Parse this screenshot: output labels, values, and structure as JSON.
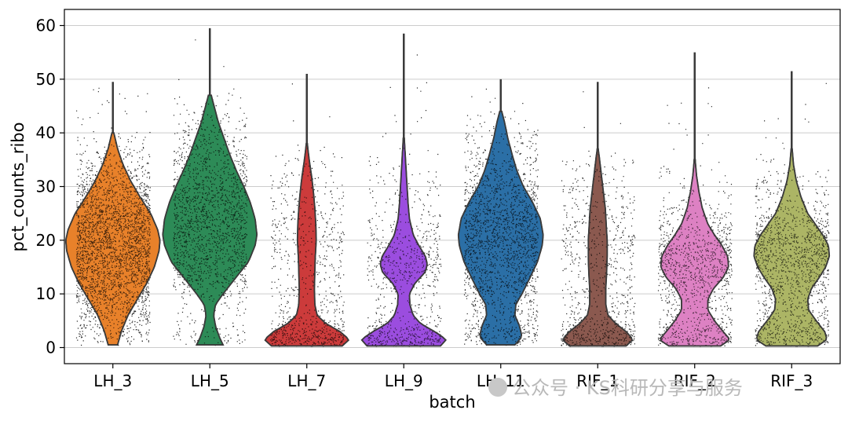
{
  "chart_data": {
    "type": "violin",
    "title": "",
    "xlabel": "batch",
    "ylabel": "pct_counts_ribo",
    "ylim": [
      -3,
      63
    ],
    "yticks": [
      0,
      10,
      20,
      30,
      40,
      50,
      60
    ],
    "grid": "y",
    "categories": [
      "LH_3",
      "LH_5",
      "LH_7",
      "LH_9",
      "LH_11",
      "RIF_1",
      "RIF_2",
      "RIF_3"
    ],
    "colors": [
      "#e8822a",
      "#2e8b57",
      "#cc3b3b",
      "#9b4de0",
      "#2b6fa6",
      "#8b5a50",
      "#dd82c4",
      "#adb566"
    ],
    "violins": [
      {
        "name": "LH_3",
        "min": 0.5,
        "max": 49.5,
        "profile": [
          [
            0.5,
            0.1
          ],
          [
            3,
            0.18
          ],
          [
            6,
            0.32
          ],
          [
            9,
            0.52
          ],
          [
            12,
            0.72
          ],
          [
            15,
            0.88
          ],
          [
            18,
            0.98
          ],
          [
            20,
            1.0
          ],
          [
            22,
            0.95
          ],
          [
            25,
            0.8
          ],
          [
            28,
            0.58
          ],
          [
            31,
            0.38
          ],
          [
            34,
            0.22
          ],
          [
            37,
            0.1
          ],
          [
            40,
            0.02
          ],
          [
            49.5,
            0.0
          ]
        ]
      },
      {
        "name": "LH_5",
        "min": 0.5,
        "max": 59.5,
        "profile": [
          [
            0.5,
            0.28
          ],
          [
            2,
            0.2
          ],
          [
            4,
            0.12
          ],
          [
            6,
            0.08
          ],
          [
            8,
            0.12
          ],
          [
            10,
            0.28
          ],
          [
            13,
            0.55
          ],
          [
            16,
            0.82
          ],
          [
            19,
            0.96
          ],
          [
            21,
            1.0
          ],
          [
            24,
            0.96
          ],
          [
            27,
            0.86
          ],
          [
            30,
            0.72
          ],
          [
            33,
            0.56
          ],
          [
            36,
            0.42
          ],
          [
            39,
            0.3
          ],
          [
            42,
            0.18
          ],
          [
            45,
            0.09
          ],
          [
            47,
            0.03
          ],
          [
            50,
            0.0
          ],
          [
            59.5,
            0.0
          ]
        ]
      },
      {
        "name": "LH_7",
        "min": 0.3,
        "max": 51,
        "profile": [
          [
            0.3,
            0.75
          ],
          [
            1.5,
            0.9
          ],
          [
            3,
            0.7
          ],
          [
            4.5,
            0.4
          ],
          [
            6,
            0.22
          ],
          [
            8,
            0.17
          ],
          [
            11,
            0.16
          ],
          [
            14,
            0.17
          ],
          [
            17,
            0.18
          ],
          [
            20,
            0.2
          ],
          [
            23,
            0.19
          ],
          [
            26,
            0.17
          ],
          [
            29,
            0.14
          ],
          [
            32,
            0.1
          ],
          [
            35,
            0.05
          ],
          [
            38,
            0.01
          ],
          [
            51,
            0.0
          ]
        ]
      },
      {
        "name": "LH_9",
        "min": 0.3,
        "max": 58.5,
        "profile": [
          [
            0.3,
            0.78
          ],
          [
            1.5,
            0.9
          ],
          [
            3,
            0.65
          ],
          [
            4.5,
            0.35
          ],
          [
            6,
            0.2
          ],
          [
            8,
            0.13
          ],
          [
            10,
            0.12
          ],
          [
            12,
            0.24
          ],
          [
            14,
            0.45
          ],
          [
            15.5,
            0.5
          ],
          [
            17,
            0.46
          ],
          [
            19,
            0.32
          ],
          [
            21,
            0.2
          ],
          [
            24,
            0.12
          ],
          [
            27,
            0.09
          ],
          [
            30,
            0.07
          ],
          [
            33,
            0.05
          ],
          [
            36,
            0.03
          ],
          [
            39,
            0.01
          ],
          [
            58.5,
            0.0
          ]
        ]
      },
      {
        "name": "LH_11",
        "min": 0.5,
        "max": 50,
        "profile": [
          [
            0.5,
            0.3
          ],
          [
            2,
            0.45
          ],
          [
            4,
            0.4
          ],
          [
            6,
            0.3
          ],
          [
            8,
            0.32
          ],
          [
            10,
            0.45
          ],
          [
            13,
            0.62
          ],
          [
            16,
            0.78
          ],
          [
            19,
            0.88
          ],
          [
            21,
            0.9
          ],
          [
            24,
            0.84
          ],
          [
            27,
            0.68
          ],
          [
            30,
            0.48
          ],
          [
            33,
            0.34
          ],
          [
            36,
            0.24
          ],
          [
            39,
            0.15
          ],
          [
            42,
            0.08
          ],
          [
            44,
            0.02
          ],
          [
            50,
            0.0
          ]
        ]
      },
      {
        "name": "RIF_1",
        "min": 0.3,
        "max": 49.5,
        "profile": [
          [
            0.3,
            0.6
          ],
          [
            1.5,
            0.75
          ],
          [
            3,
            0.6
          ],
          [
            4.5,
            0.38
          ],
          [
            6,
            0.22
          ],
          [
            8,
            0.17
          ],
          [
            11,
            0.17
          ],
          [
            14,
            0.19
          ],
          [
            17,
            0.2
          ],
          [
            20,
            0.2
          ],
          [
            23,
            0.18
          ],
          [
            26,
            0.16
          ],
          [
            29,
            0.12
          ],
          [
            32,
            0.08
          ],
          [
            35,
            0.04
          ],
          [
            37,
            0.01
          ],
          [
            49.5,
            0.0
          ]
        ]
      },
      {
        "name": "RIF_2",
        "min": 0.3,
        "max": 55,
        "profile": [
          [
            0.3,
            0.55
          ],
          [
            1.5,
            0.75
          ],
          [
            3,
            0.6
          ],
          [
            5,
            0.42
          ],
          [
            7,
            0.28
          ],
          [
            9,
            0.28
          ],
          [
            11,
            0.4
          ],
          [
            13,
            0.6
          ],
          [
            15,
            0.72
          ],
          [
            17,
            0.7
          ],
          [
            19,
            0.58
          ],
          [
            21,
            0.42
          ],
          [
            23,
            0.28
          ],
          [
            26,
            0.16
          ],
          [
            29,
            0.09
          ],
          [
            32,
            0.04
          ],
          [
            35,
            0.01
          ],
          [
            55,
            0.0
          ]
        ]
      },
      {
        "name": "RIF_3",
        "min": 0.3,
        "max": 51.5,
        "profile": [
          [
            0.3,
            0.55
          ],
          [
            1.5,
            0.75
          ],
          [
            3,
            0.7
          ],
          [
            5,
            0.52
          ],
          [
            7,
            0.36
          ],
          [
            9,
            0.34
          ],
          [
            11,
            0.42
          ],
          [
            13,
            0.58
          ],
          [
            15,
            0.72
          ],
          [
            17,
            0.8
          ],
          [
            19,
            0.78
          ],
          [
            21,
            0.66
          ],
          [
            23,
            0.5
          ],
          [
            25,
            0.34
          ],
          [
            28,
            0.2
          ],
          [
            31,
            0.1
          ],
          [
            34,
            0.04
          ],
          [
            37,
            0.01
          ],
          [
            51.5,
            0.0
          ]
        ]
      }
    ]
  },
  "watermark": {
    "text": "公众号 · KS科研分享与服务"
  }
}
